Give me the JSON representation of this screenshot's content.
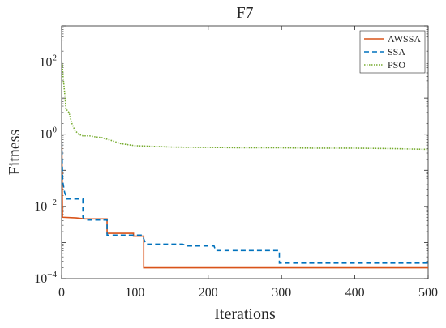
{
  "chart_data": {
    "type": "line",
    "title": "F7",
    "xlabel": "Iterations",
    "ylabel": "Fitness",
    "xlim": [
      0,
      500
    ],
    "ylim_log10": [
      -4,
      3
    ],
    "yscale": "log",
    "grid": false,
    "legend_position": "top-right",
    "x_ticks": [
      0,
      100,
      200,
      300,
      400,
      500
    ],
    "x_tick_labels": [
      "0",
      "100",
      "200",
      "300",
      "400",
      "500"
    ],
    "y_ticks_exp": [
      -4,
      -2,
      0,
      2
    ],
    "y_tick_labels": [
      {
        "base": "10",
        "exp": "−4"
      },
      {
        "base": "10",
        "exp": "−2"
      },
      {
        "base": "10",
        "exp": "0"
      },
      {
        "base": "10",
        "exp": "2"
      }
    ],
    "series": [
      {
        "name": "AWSSA",
        "color": "#d95319",
        "dash": "solid",
        "points": [
          [
            0,
            1.2
          ],
          [
            0.6,
            0.2
          ],
          [
            1.2,
            0.005
          ],
          [
            20,
            0.0048
          ],
          [
            32,
            0.0045
          ],
          [
            62,
            0.0045
          ],
          [
            62,
            0.0018
          ],
          [
            98,
            0.0018
          ],
          [
            98,
            0.0015
          ],
          [
            112,
            0.0015
          ],
          [
            112,
            0.0002
          ],
          [
            500,
            0.0002
          ]
        ]
      },
      {
        "name": "SSA",
        "color": "#0072bd",
        "dash": "dashed",
        "points": [
          [
            0,
            1.0
          ],
          [
            0.8,
            0.2
          ],
          [
            1.5,
            0.05
          ],
          [
            4,
            0.025
          ],
          [
            7,
            0.016
          ],
          [
            29,
            0.016
          ],
          [
            29,
            0.005
          ],
          [
            32,
            0.0042
          ],
          [
            62,
            0.0042
          ],
          [
            62,
            0.0016
          ],
          [
            110,
            0.0016
          ],
          [
            115,
            0.0009
          ],
          [
            165,
            0.0009
          ],
          [
            172,
            0.0008
          ],
          [
            208,
            0.0008
          ],
          [
            210,
            0.0006
          ],
          [
            297,
            0.0006
          ],
          [
            297,
            0.00027
          ],
          [
            500,
            0.00027
          ]
        ]
      },
      {
        "name": "PSO",
        "color": "#77ac30",
        "dash": "dotted",
        "points": [
          [
            0,
            120
          ],
          [
            1,
            80
          ],
          [
            2,
            40
          ],
          [
            4,
            15
          ],
          [
            6,
            5
          ],
          [
            10,
            4
          ],
          [
            14,
            2
          ],
          [
            18,
            1.3
          ],
          [
            23,
            1.0
          ],
          [
            29,
            0.9
          ],
          [
            38,
            0.9
          ],
          [
            45,
            0.85
          ],
          [
            55,
            0.8
          ],
          [
            70,
            0.65
          ],
          [
            80,
            0.55
          ],
          [
            100,
            0.48
          ],
          [
            150,
            0.44
          ],
          [
            200,
            0.43
          ],
          [
            250,
            0.42
          ],
          [
            300,
            0.42
          ],
          [
            350,
            0.41
          ],
          [
            400,
            0.41
          ],
          [
            450,
            0.4
          ],
          [
            500,
            0.38
          ]
        ]
      }
    ]
  }
}
